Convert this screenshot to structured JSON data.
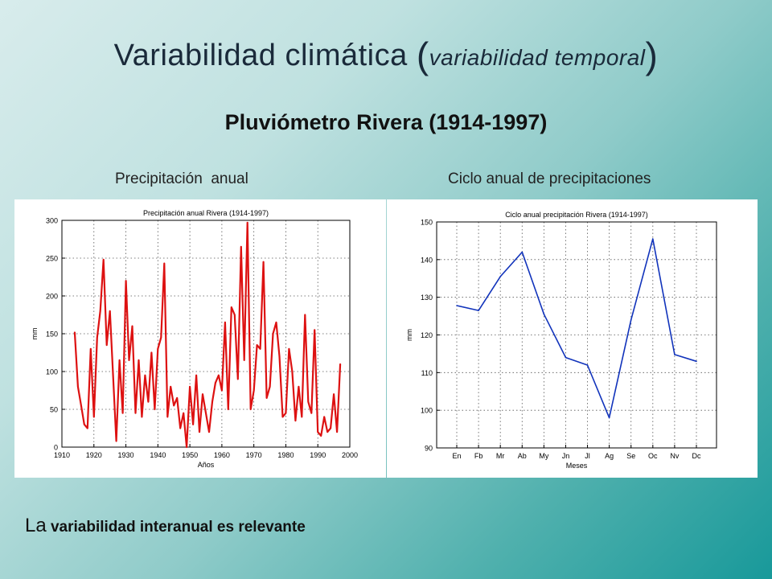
{
  "slide": {
    "title_main": "Variabilidad climática",
    "title_open": "(",
    "title_sub": "variabilidad temporal",
    "title_close": ")",
    "subtitle": "Pluviómetro Rivera (1914-1997)",
    "caption_left": "Precipitación  anual",
    "caption_right": "Ciclo anual de precipitaciones",
    "note_big": "La",
    "note_rest": " variabilidad interanual es relevante"
  },
  "chart_data": [
    {
      "type": "line",
      "title": "Precipitación anual Rivera (1914-1997)",
      "xlabel": "Años",
      "ylabel": "mm",
      "xlim": [
        1910,
        2000
      ],
      "ylim": [
        0,
        300
      ],
      "xticks": [
        1910,
        1920,
        1930,
        1940,
        1950,
        1960,
        1970,
        1980,
        1990,
        2000
      ],
      "yticks": [
        0,
        50,
        100,
        150,
        200,
        250,
        300
      ],
      "grid": true,
      "color": "#dd1111",
      "x": [
        1914,
        1915,
        1916,
        1917,
        1918,
        1919,
        1920,
        1921,
        1922,
        1923,
        1924,
        1925,
        1926,
        1927,
        1928,
        1929,
        1930,
        1931,
        1932,
        1933,
        1934,
        1935,
        1936,
        1937,
        1938,
        1939,
        1940,
        1941,
        1942,
        1943,
        1944,
        1945,
        1946,
        1947,
        1948,
        1949,
        1950,
        1951,
        1952,
        1953,
        1954,
        1955,
        1956,
        1957,
        1958,
        1959,
        1960,
        1961,
        1962,
        1963,
        1964,
        1965,
        1966,
        1967,
        1968,
        1969,
        1970,
        1971,
        1972,
        1973,
        1974,
        1975,
        1976,
        1977,
        1978,
        1979,
        1980,
        1981,
        1982,
        1983,
        1984,
        1985,
        1986,
        1987,
        1988,
        1989,
        1990,
        1991,
        1992,
        1993,
        1994,
        1995,
        1996,
        1997
      ],
      "values": [
        152,
        80,
        55,
        30,
        25,
        130,
        40,
        145,
        180,
        248,
        135,
        180,
        95,
        8,
        115,
        45,
        220,
        115,
        160,
        45,
        115,
        40,
        95,
        60,
        125,
        50,
        130,
        145,
        243,
        40,
        80,
        55,
        65,
        25,
        45,
        0,
        80,
        30,
        95,
        20,
        70,
        45,
        20,
        60,
        85,
        95,
        75,
        165,
        50,
        185,
        175,
        90,
        265,
        115,
        297,
        50,
        75,
        135,
        130,
        245,
        65,
        80,
        150,
        165,
        120,
        40,
        45,
        130,
        100,
        35,
        80,
        40,
        175,
        60,
        45,
        155,
        20,
        15,
        40,
        20,
        25,
        70,
        20,
        110
      ]
    },
    {
      "type": "line",
      "title": "Ciclo anual precipitación Rivera (1914-1997)",
      "xlabel": "Meses",
      "ylabel": "mm",
      "ylim": [
        90,
        150
      ],
      "yticks": [
        90,
        100,
        110,
        120,
        130,
        140,
        150
      ],
      "grid": true,
      "color": "#1133bb",
      "categories": [
        "En",
        "Fb",
        "Mr",
        "Ab",
        "My",
        "Jn",
        "Jl",
        "Ag",
        "Se",
        "Oc",
        "Nv",
        "Dc"
      ],
      "values": [
        127.8,
        126.5,
        135.5,
        142,
        125.5,
        114,
        112,
        98,
        124,
        145.5,
        114.8,
        113
      ]
    }
  ]
}
